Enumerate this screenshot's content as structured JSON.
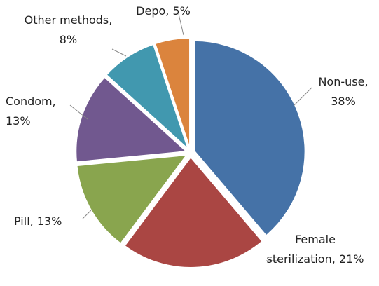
{
  "chart_data": {
    "type": "pie",
    "categories": [
      "Non-use,",
      "Female sterilization,",
      "Pill,",
      "Condom,",
      "Other methods,",
      "Depo,"
    ],
    "values": [
      38,
      21,
      13,
      13,
      8,
      5
    ],
    "value_labels": [
      "38%",
      "21%",
      "13%",
      "13%",
      "8%",
      "5%"
    ],
    "colors": [
      "#4572a7",
      "#aa4643",
      "#89a54e",
      "#71588f",
      "#4198af",
      "#db843d"
    ]
  }
}
